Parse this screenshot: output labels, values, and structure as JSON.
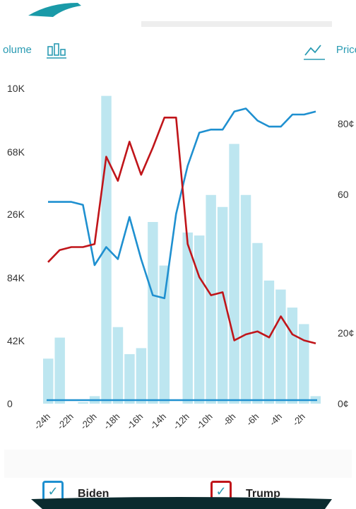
{
  "header": {
    "volume_label": "olume",
    "price_label": "Price",
    "volume_icon": "bar-chart-icon",
    "price_icon": "price-chart-icon"
  },
  "legend": {
    "biden_label": "Biden",
    "trump_label": "Trump"
  },
  "colors": {
    "biden": "#1f90d0",
    "trump": "#c0151a",
    "volume": "#bde6f0",
    "accent": "#2a9bb3"
  },
  "chart_data": {
    "type": "bar+line",
    "x_ticks": [
      "-24h",
      "-22h",
      "-20h",
      "-18h",
      "-16h",
      "-14h",
      "-12h",
      "-10h",
      "-8h",
      "-6h",
      "-4h",
      "-2h"
    ],
    "volume_axis_labels": [
      "0",
      "42K",
      "84K",
      "26K",
      "68K",
      "10K"
    ],
    "price_axis_labels": [
      "0¢",
      "20¢",
      "60",
      "80¢"
    ],
    "volume": {
      "name": "Volume",
      "ylim": [
        0,
        210000
      ],
      "values": [
        30000,
        44000,
        0,
        1000,
        5000,
        205000,
        51000,
        33000,
        37000,
        121000,
        92000,
        0,
        114000,
        112000,
        139000,
        131000,
        173000,
        139000,
        107000,
        82000,
        76000,
        64000,
        53000,
        5000
      ]
    },
    "series": [
      {
        "name": "Biden",
        "ylim": [
          0,
          100
        ],
        "values": [
          67,
          67,
          67,
          66,
          46,
          52,
          48,
          62,
          48,
          36,
          35,
          63,
          79,
          90,
          91,
          91,
          97,
          98,
          94,
          92,
          92,
          96,
          96,
          97
        ]
      },
      {
        "name": "Trump",
        "ylim": [
          0,
          100
        ],
        "values": [
          47,
          51,
          52,
          52,
          53,
          82,
          74,
          87,
          76,
          85,
          95,
          95,
          53,
          42,
          36,
          37,
          21,
          23,
          24,
          22,
          29,
          23,
          21,
          20
        ]
      }
    ]
  }
}
